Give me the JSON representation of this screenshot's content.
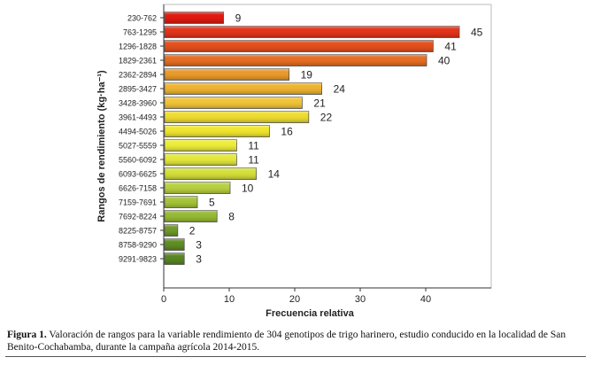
{
  "chart_data": {
    "type": "bar",
    "orientation": "horizontal",
    "title": "",
    "xlabel": "Frecuencia relativa",
    "ylabel": "Rangos de rendimiento (kg·ha⁻¹)",
    "xlim": [
      0,
      50
    ],
    "xticks": [
      0,
      10,
      20,
      30,
      40
    ],
    "categories": [
      "230-762",
      "763-1295",
      "1296-1828",
      "1829-2361",
      "2362-2894",
      "2895-3427",
      "3428-3960",
      "3961-4493",
      "4494-5026",
      "5027-5559",
      "5560-6092",
      "6093-6625",
      "6626-7158",
      "7159-7691",
      "7692-8224",
      "8225-8757",
      "8758-9290",
      "9291-9823"
    ],
    "values": [
      9,
      45,
      41,
      40,
      19,
      24,
      21,
      22,
      16,
      11,
      11,
      14,
      10,
      5,
      8,
      2,
      3,
      3
    ],
    "colors": [
      "#e01a10",
      "#e3341a",
      "#e4501e",
      "#e66e22",
      "#e99a2c",
      "#eeb430",
      "#f0c438",
      "#eedc30",
      "#f0e62e",
      "#ecec3a",
      "#e4e83c",
      "#d4e03a",
      "#b8d040",
      "#a6c43a",
      "#96ba34",
      "#6f9a28",
      "#5f8c24",
      "#588622"
    ],
    "grid": false
  },
  "caption": {
    "label": "Figura 1.",
    "text": " Valoración de rangos para la variable rendimiento de 304 genotipos de trigo harinero, estudio conducido en la localidad de San Benito-Cochabamba, durante la campaña agrícola 2014-2015."
  }
}
